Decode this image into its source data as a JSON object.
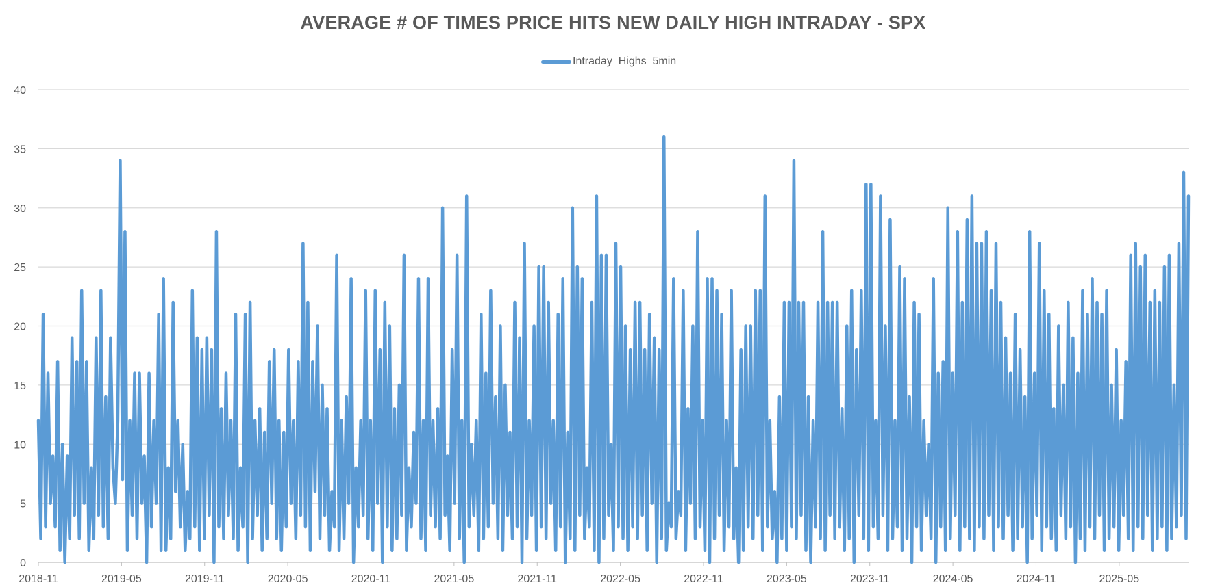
{
  "chart_data": {
    "type": "line",
    "title": "AVERAGE # OF TIMES PRICE HITS NEW DAILY HIGH INTRADAY - SPX",
    "xlabel": "",
    "ylabel": "",
    "ylim": [
      0,
      40
    ],
    "yticks": [
      "0",
      "5",
      "10",
      "15",
      "20",
      "25",
      "30",
      "35",
      "40"
    ],
    "xticks": [
      "2018-11",
      "2019-05",
      "2019-11",
      "2020-05",
      "2020-11",
      "2021-05",
      "2021-11",
      "2022-05",
      "2022-11",
      "2023-05",
      "2023-11",
      "2024-05",
      "2024-11",
      "2025-05"
    ],
    "x_range": [
      "2018-11",
      "2025-10"
    ],
    "grid": "horizontal",
    "legend_position": "top",
    "series": [
      {
        "name": "Intraday_Highs_5min",
        "color": "#5B9BD5",
        "sampling": "approximate per-week sample of daily values (too dense to read every trading day)",
        "values": [
          12,
          2,
          21,
          3,
          16,
          5,
          9,
          3,
          17,
          1,
          10,
          0,
          9,
          2,
          19,
          4,
          17,
          2,
          23,
          5,
          17,
          1,
          8,
          2,
          19,
          4,
          23,
          3,
          14,
          2,
          19,
          8,
          5,
          12,
          34,
          7,
          28,
          1,
          12,
          4,
          16,
          2,
          16,
          5,
          9,
          0,
          16,
          3,
          12,
          5,
          21,
          1,
          24,
          1,
          8,
          2,
          22,
          6,
          12,
          3,
          10,
          1,
          6,
          2,
          23,
          3,
          19,
          1,
          18,
          2,
          19,
          4,
          18,
          0,
          28,
          3,
          13,
          2,
          16,
          4,
          12,
          2,
          21,
          1,
          8,
          3,
          21,
          0,
          22,
          2,
          12,
          4,
          13,
          1,
          11,
          2,
          17,
          5,
          18,
          2,
          12,
          1,
          11,
          3,
          18,
          5,
          12,
          2,
          17,
          4,
          27,
          3,
          22,
          1,
          17,
          6,
          20,
          2,
          15,
          4,
          13,
          1,
          6,
          3,
          26,
          1,
          12,
          2,
          14,
          5,
          24,
          0,
          8,
          3,
          12,
          4,
          23,
          2,
          12,
          1,
          23,
          5,
          18,
          0,
          22,
          3,
          20,
          1,
          13,
          2,
          15,
          4,
          26,
          1,
          8,
          3,
          11,
          5,
          24,
          2,
          12,
          1,
          24,
          4,
          12,
          3,
          13,
          2,
          30,
          4,
          9,
          1,
          18,
          5,
          26,
          2,
          12,
          0,
          31,
          3,
          10,
          4,
          12,
          1,
          21,
          2,
          16,
          3,
          23,
          5,
          14,
          2,
          20,
          1,
          15,
          4,
          11,
          2,
          22,
          3,
          19,
          0,
          27,
          2,
          12,
          4,
          20,
          1,
          25,
          3,
          25,
          2,
          22,
          5,
          12,
          1,
          21,
          3,
          24,
          0,
          11,
          2,
          30,
          1,
          25,
          4,
          24,
          2,
          8,
          3,
          22,
          1,
          31,
          0,
          26,
          2,
          26,
          4,
          10,
          1,
          27,
          3,
          25,
          2,
          20,
          1,
          18,
          3,
          22,
          2,
          22,
          4,
          18,
          1,
          21,
          5,
          19,
          0,
          18,
          2,
          36,
          1,
          5,
          3,
          24,
          2,
          6,
          4,
          23,
          1,
          13,
          5,
          20,
          2,
          28,
          3,
          12,
          1,
          24,
          0,
          24,
          2,
          23,
          4,
          21,
          1,
          12,
          3,
          23,
          2,
          8,
          0,
          18,
          1,
          20,
          3,
          20,
          2,
          23,
          4,
          23,
          1,
          31,
          3,
          12,
          2,
          6,
          0,
          14,
          2,
          22,
          1,
          22,
          3,
          34,
          2,
          22,
          4,
          22,
          1,
          14,
          0,
          12,
          3,
          22,
          2,
          28,
          1,
          22,
          4,
          22,
          2,
          22,
          3,
          13,
          1,
          20,
          2,
          23,
          0,
          18,
          4,
          23,
          2,
          32,
          1,
          32,
          3,
          12,
          2,
          31,
          4,
          20,
          1,
          29,
          2,
          12,
          3,
          25,
          1,
          24,
          2,
          14,
          0,
          22,
          3,
          21,
          1,
          12,
          4,
          10,
          2,
          24,
          0,
          16,
          3,
          17,
          1,
          30,
          2,
          16,
          4,
          28,
          1,
          22,
          3,
          29,
          2,
          31,
          1,
          27,
          3,
          27,
          2,
          28,
          4,
          23,
          1,
          27,
          3,
          22,
          2,
          19,
          4,
          16,
          1,
          21,
          2,
          18,
          3,
          14,
          0,
          28,
          2,
          16,
          4,
          27,
          1,
          23,
          3,
          21,
          2,
          13,
          1,
          20,
          4,
          15,
          2,
          22,
          3,
          19,
          0,
          16,
          2,
          23,
          1,
          21,
          3,
          24,
          2,
          22,
          4,
          21,
          1,
          23,
          2,
          15,
          3,
          18,
          1,
          12,
          4,
          17,
          2,
          26,
          1,
          27,
          3,
          25,
          2,
          26,
          4,
          22,
          1,
          23,
          2,
          22,
          3,
          25,
          1,
          26,
          2,
          15,
          3,
          27,
          4,
          33,
          2,
          31
        ]
      }
    ]
  }
}
